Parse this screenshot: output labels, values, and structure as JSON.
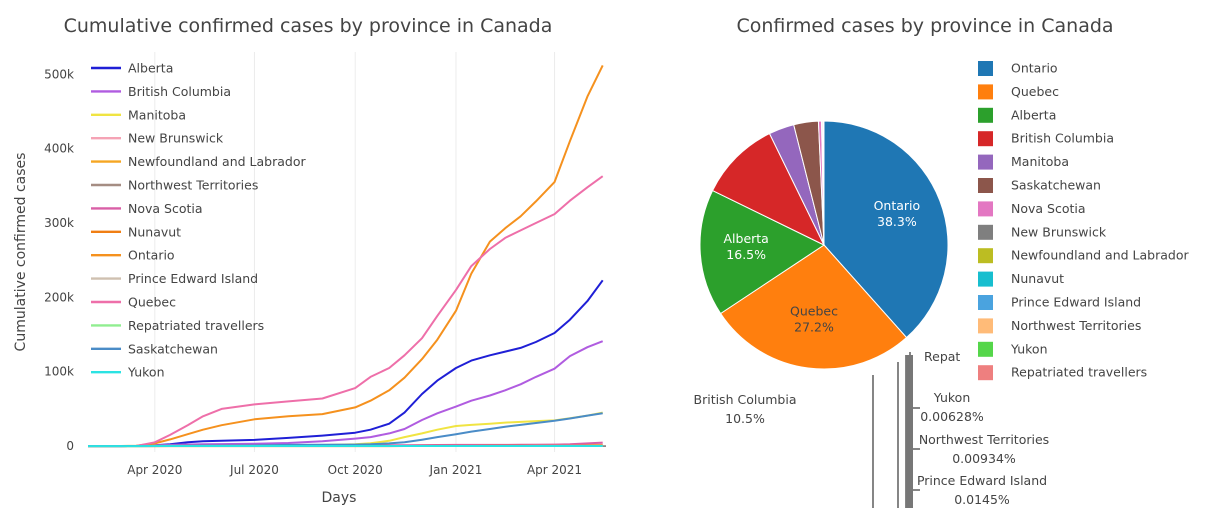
{
  "chart_data": [
    {
      "type": "line",
      "title": "Cumulative confirmed cases by province in Canada",
      "xlabel": "Days",
      "ylabel": "Cumulative confirmed cases",
      "x_ticks": [
        "2020-04-01",
        "2020-07-01",
        "2020-10-01",
        "2021-01-01",
        "2021-04-01"
      ],
      "x_tick_labels": [
        "Apr 2020",
        "Jul 2020",
        "Oct 2020",
        "Jan 2021",
        "Apr 2021"
      ],
      "xlim": [
        "2020-01-31",
        "2021-05-18"
      ],
      "y_ticks": [
        0,
        100000,
        200000,
        300000,
        400000,
        500000
      ],
      "y_tick_labels": [
        "0",
        "100k",
        "200k",
        "300k",
        "400k",
        "500k"
      ],
      "ylim": [
        -8000,
        530000
      ],
      "grid": "vertical",
      "legend_position": "top-left inside",
      "x": [
        "2020-01-31",
        "2020-03-01",
        "2020-03-15",
        "2020-04-01",
        "2020-04-15",
        "2020-05-01",
        "2020-05-15",
        "2020-06-01",
        "2020-07-01",
        "2020-08-01",
        "2020-09-01",
        "2020-10-01",
        "2020-10-15",
        "2020-11-01",
        "2020-11-15",
        "2020-12-01",
        "2020-12-15",
        "2021-01-01",
        "2021-01-15",
        "2021-02-01",
        "2021-02-15",
        "2021-03-01",
        "2021-03-15",
        "2021-04-01",
        "2021-04-15",
        "2021-05-01",
        "2021-05-15"
      ],
      "series": [
        {
          "name": "Alberta",
          "color": "#1f1fd6",
          "values": [
            0,
            0,
            30,
            1000,
            2500,
            5000,
            6500,
            7000,
            8300,
            11000,
            14000,
            18000,
            22000,
            30000,
            45000,
            70000,
            88000,
            105000,
            115000,
            122000,
            127000,
            132000,
            140000,
            152000,
            170000,
            195000,
            223000
          ]
        },
        {
          "name": "British Columbia",
          "color": "#b05ce0",
          "values": [
            0,
            0,
            100,
            1000,
            1600,
            2100,
            2400,
            2600,
            3000,
            4100,
            6500,
            10000,
            12000,
            17000,
            23000,
            35000,
            44000,
            53000,
            61000,
            68000,
            75000,
            83000,
            93000,
            104000,
            121000,
            133000,
            141000
          ]
        },
        {
          "name": "Manitoba",
          "color": "#f0e442",
          "values": [
            0,
            0,
            10,
            150,
            250,
            280,
            290,
            300,
            330,
            500,
            1400,
            2500,
            3800,
            7000,
            12000,
            17000,
            22000,
            27000,
            28500,
            30000,
            31500,
            32500,
            33500,
            34500,
            37500,
            41000,
            45000
          ]
        },
        {
          "name": "New Brunswick",
          "color": "#f5a3b5",
          "values": [
            0,
            0,
            5,
            80,
            110,
            120,
            120,
            120,
            170,
            180,
            190,
            300,
            330,
            350,
            360,
            500,
            550,
            600,
            900,
            1100,
            1300,
            1400,
            1500,
            1700,
            1800,
            1900,
            2000
          ]
        },
        {
          "name": "Newfoundland and Labrador",
          "color": "#f5a623",
          "values": [
            0,
            0,
            5,
            200,
            250,
            260,
            260,
            260,
            260,
            265,
            270,
            280,
            285,
            290,
            300,
            320,
            350,
            390,
            400,
            410,
            790,
            990,
            1000,
            1010,
            1020,
            1070,
            1140
          ]
        },
        {
          "name": "Northwest Territories",
          "color": "#a58d83",
          "values": [
            0,
            0,
            0,
            1,
            5,
            5,
            5,
            5,
            5,
            5,
            5,
            5,
            5,
            10,
            14,
            16,
            20,
            24,
            27,
            30,
            35,
            40,
            41,
            45,
            50,
            60,
            70
          ]
        },
        {
          "name": "Nova Scotia",
          "color": "#d95fa6",
          "values": [
            0,
            0,
            5,
            200,
            600,
            950,
            1030,
            1060,
            1070,
            1080,
            1085,
            1090,
            1100,
            1110,
            1150,
            1300,
            1450,
            1550,
            1570,
            1590,
            1600,
            1650,
            1750,
            1950,
            2400,
            3500,
            4600
          ]
        },
        {
          "name": "Nunavut",
          "color": "#f07e13",
          "values": [
            0,
            0,
            0,
            0,
            0,
            0,
            0,
            0,
            0,
            0,
            0,
            0,
            0,
            0,
            80,
            200,
            250,
            266,
            270,
            280,
            290,
            300,
            350,
            400,
            450,
            550,
            650
          ]
        },
        {
          "name": "Ontario",
          "color": "#f5911e",
          "values": [
            0,
            100,
            400,
            3500,
            9000,
            16000,
            22000,
            28000,
            36000,
            40000,
            43000,
            52000,
            61000,
            75000,
            92000,
            117000,
            143000,
            182000,
            232000,
            275000,
            293000,
            309000,
            329000,
            355000,
            410000,
            470000,
            512000
          ]
        },
        {
          "name": "Prince Edward Island",
          "color": "#cfc0b0",
          "values": [
            0,
            0,
            1,
            20,
            25,
            27,
            27,
            27,
            30,
            35,
            45,
            60,
            62,
            65,
            70,
            80,
            90,
            100,
            105,
            110,
            114,
            130,
            145,
            160,
            165,
            175,
            180
          ]
        },
        {
          "name": "Quebec",
          "color": "#ee6fa9",
          "values": [
            0,
            0,
            100,
            5000,
            15000,
            28000,
            40000,
            50000,
            56000,
            60000,
            64000,
            78000,
            93000,
            105000,
            122000,
            145000,
            175000,
            210000,
            242000,
            265000,
            280000,
            290000,
            300000,
            312000,
            330000,
            348000,
            363000
          ]
        },
        {
          "name": "Repatriated travellers",
          "color": "#90ee90",
          "values": [
            0,
            0,
            0,
            13,
            13,
            13,
            13,
            13,
            13,
            13,
            13,
            13,
            13,
            13,
            13,
            13,
            13,
            13,
            13,
            13,
            13,
            13,
            13,
            13,
            13,
            13,
            13
          ]
        },
        {
          "name": "Saskatchewan",
          "color": "#4a8cc7",
          "values": [
            0,
            0,
            10,
            170,
            300,
            400,
            580,
            640,
            790,
            1600,
            1730,
            1930,
            2300,
            3500,
            5000,
            8500,
            12000,
            16000,
            19500,
            23000,
            26000,
            28500,
            31000,
            34000,
            37000,
            41000,
            44000
          ]
        },
        {
          "name": "Yukon",
          "color": "#2be3e3",
          "values": [
            0,
            0,
            0,
            5,
            8,
            11,
            11,
            11,
            11,
            15,
            15,
            16,
            17,
            20,
            23,
            50,
            62,
            70,
            72,
            72,
            72,
            72,
            73,
            75,
            76,
            79,
            82
          ]
        }
      ]
    },
    {
      "type": "pie",
      "title": "Confirmed cases by province in Canada",
      "legend_position": "top-right",
      "slices": [
        {
          "name": "Ontario",
          "percent": 38.3,
          "color": "#1f77b4",
          "label": "Ontario\n38.3%",
          "label_position": "inside"
        },
        {
          "name": "Quebec",
          "percent": 27.2,
          "color": "#ff7f0e",
          "label": "Quebec\n27.2%",
          "label_position": "inside"
        },
        {
          "name": "Alberta",
          "percent": 16.5,
          "color": "#2ca02c",
          "label": "Alberta\n16.5%",
          "label_position": "inside"
        },
        {
          "name": "British Columbia",
          "percent": 10.5,
          "color": "#d62728",
          "label": "British Columbia\n10.5%",
          "label_position": "outside"
        },
        {
          "name": "Manitoba",
          "percent": 3.3,
          "color": "#9467bd",
          "label": "",
          "label_position": "none"
        },
        {
          "name": "Saskatchewan",
          "percent": 3.2,
          "color": "#8c564b",
          "label": "",
          "label_position": "none"
        },
        {
          "name": "Nova Scotia",
          "percent": 0.4,
          "color": "#e377c2",
          "label": "",
          "label_position": "none"
        },
        {
          "name": "New Brunswick",
          "percent": 0.15,
          "color": "#7f7f7f",
          "label": "",
          "label_position": "none"
        },
        {
          "name": "Newfoundland and Labrador",
          "percent": 0.085,
          "color": "#bcbd22",
          "label": "",
          "label_position": "none"
        },
        {
          "name": "Nunavut",
          "percent": 0.049,
          "color": "#17becf",
          "label": "",
          "label_position": "none"
        },
        {
          "name": "Prince Edward Island",
          "percent": 0.0145,
          "color": "#4aa3df",
          "label": "Prince Edward Island\n0.0145%",
          "label_position": "outside"
        },
        {
          "name": "Northwest Territories",
          "percent": 0.00934,
          "color": "#ffbb78",
          "label": "Northwest Territories\n0.00934%",
          "label_position": "outside"
        },
        {
          "name": "Yukon",
          "percent": 0.00628,
          "color": "#55d64a",
          "label": "Yukon\n0.00628%",
          "label_position": "outside"
        },
        {
          "name": "Repatriated travellers",
          "percent": 0.001,
          "color": "#ee7f7f",
          "label": "Repat",
          "label_position": "outside"
        }
      ]
    }
  ]
}
